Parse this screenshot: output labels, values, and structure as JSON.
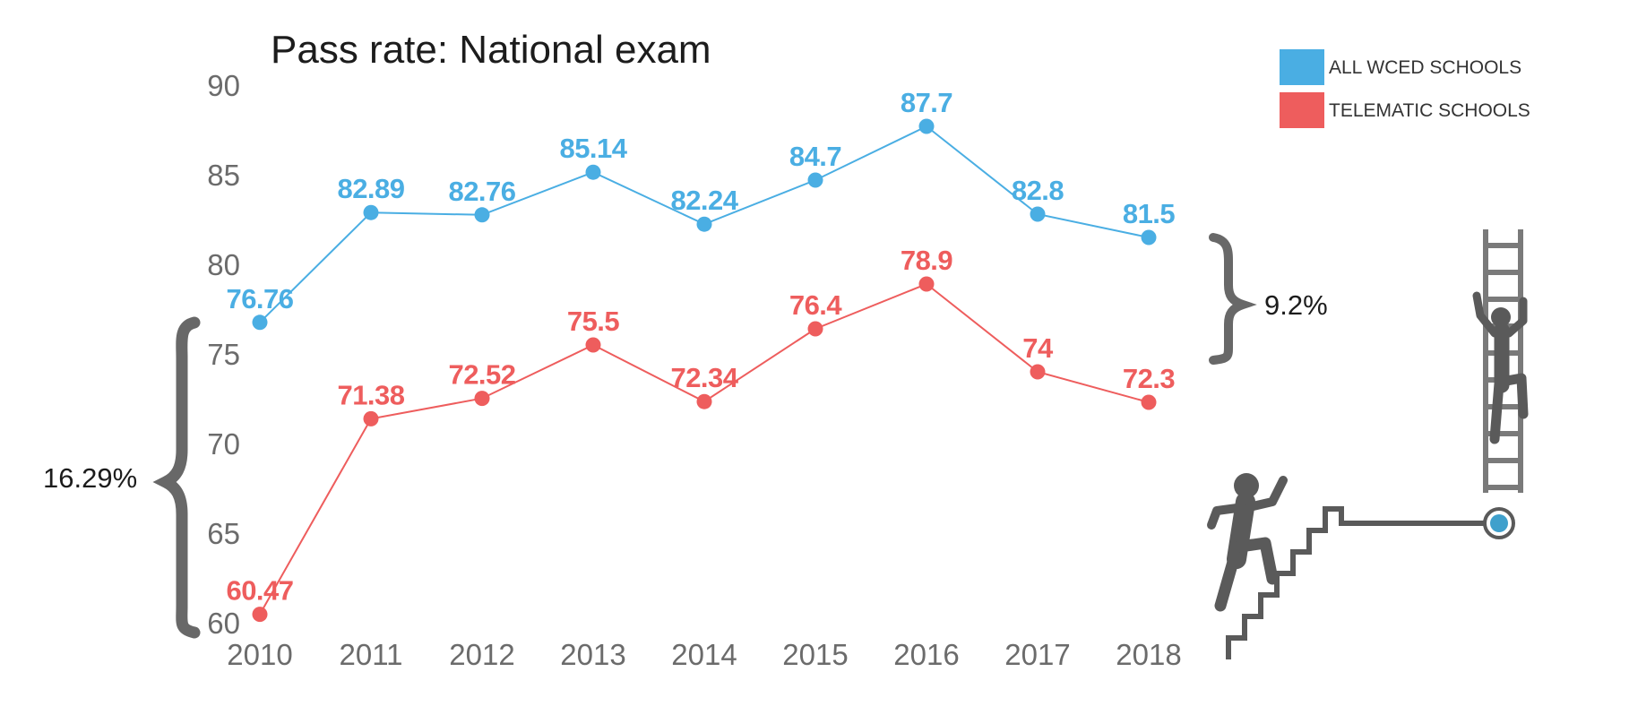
{
  "chart_data": {
    "type": "line",
    "title": "Pass rate: National exam",
    "xlabel": "",
    "ylabel": "",
    "ylim": [
      60,
      90
    ],
    "yticks": [
      60,
      65,
      70,
      75,
      80,
      85,
      90
    ],
    "categories": [
      "2010",
      "2011",
      "2012",
      "2013",
      "2014",
      "2015",
      "2016",
      "2017",
      "2018"
    ],
    "grid": false,
    "legend_position": "top-right",
    "series": [
      {
        "name": "ALL WCED SCHOOLS",
        "color": "#4aaee3",
        "values": [
          76.76,
          82.89,
          82.76,
          85.14,
          82.24,
          84.7,
          87.7,
          82.8,
          81.5
        ],
        "labels": [
          "76.76",
          "82.89",
          "82.76",
          "85.14",
          "82.24",
          "84.7",
          "87.7",
          "82.8",
          "81.5"
        ]
      },
      {
        "name": "TELEMATIC SCHOOLS",
        "color": "#ee5d5d",
        "values": [
          60.47,
          71.38,
          72.52,
          75.5,
          72.34,
          76.4,
          78.9,
          74,
          72.3
        ],
        "labels": [
          "60.47",
          "71.38",
          "72.52",
          "75.5",
          "72.34",
          "76.4",
          "78.9",
          "74",
          "72.3"
        ]
      }
    ],
    "annotations": [
      {
        "text": "16.29%",
        "from": 60.47,
        "to": 76.76,
        "side": "left"
      },
      {
        "text": "9.2%",
        "from": 72.3,
        "to": 81.5,
        "side": "right"
      }
    ]
  },
  "decor": {
    "brace_color": "#686868",
    "figure_color": "#5a5a5a",
    "ladder_color": "#7a7a7a",
    "goal_color": "#3fa0cc",
    "icons": [
      "climbing-person-icon",
      "ladder-icon",
      "running-person-icon",
      "staircase-icon",
      "goal-marker-icon"
    ]
  }
}
